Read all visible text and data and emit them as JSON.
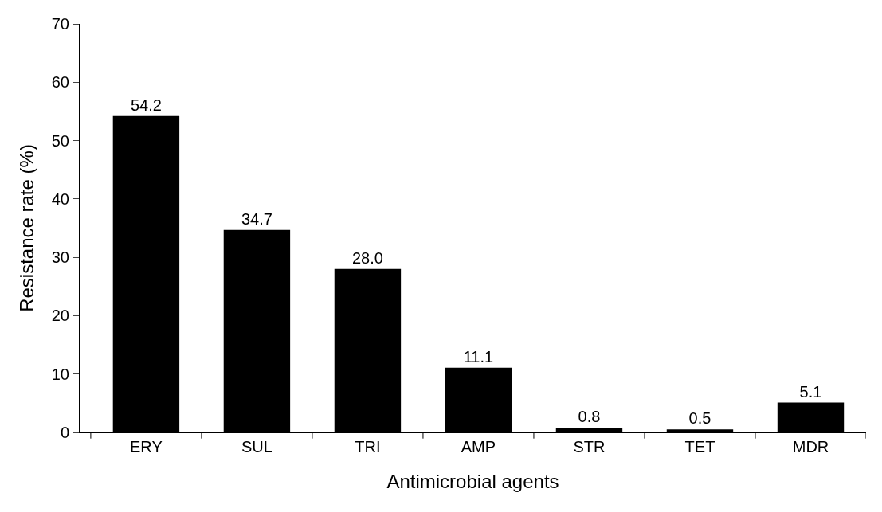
{
  "chart_data": {
    "type": "bar",
    "xlabel": "Antimicrobial agents",
    "ylabel": "Resistance rate (%)",
    "categories": [
      "ERY",
      "SUL",
      "TRI",
      "AMP",
      "STR",
      "TET",
      "MDR"
    ],
    "values": [
      54.2,
      34.7,
      28.0,
      11.1,
      0.8,
      0.5,
      5.1
    ],
    "value_labels": [
      "54.2",
      "34.7",
      "28.0",
      "11.1",
      "0.8",
      "0.5",
      "5.1"
    ],
    "color": "#000000",
    "ylim": [
      0,
      70
    ],
    "yticks": [
      0,
      10,
      20,
      30,
      40,
      50,
      60,
      70
    ]
  }
}
